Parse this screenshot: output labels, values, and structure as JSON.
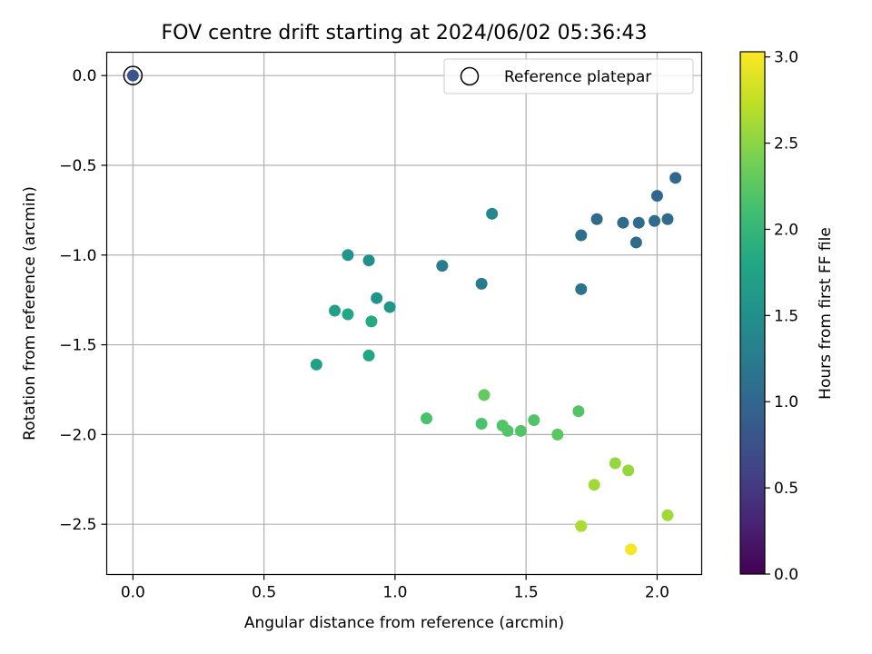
{
  "chart_data": {
    "type": "scatter",
    "title": "FOV centre drift starting at 2024/06/02 05:36:43",
    "xlabel": "Angular distance from reference (arcmin)",
    "ylabel": "Rotation from reference (arcmin)",
    "xlim": [
      -0.1,
      2.17
    ],
    "ylim": [
      -2.78,
      0.13
    ],
    "xticks": [
      0.0,
      0.5,
      1.0,
      1.5,
      2.0
    ],
    "xtick_labels": [
      "0.0",
      "0.5",
      "1.0",
      "1.5",
      "2.0"
    ],
    "yticks": [
      0.0,
      -0.5,
      -1.0,
      -1.5,
      -2.0,
      -2.5
    ],
    "ytick_labels": [
      "0.0",
      "−0.5",
      "−1.0",
      "−1.5",
      "−2.0",
      "−2.5"
    ],
    "grid": true,
    "legend": {
      "placement": "top-right",
      "entries": [
        "Reference platepar"
      ]
    },
    "colorbar": {
      "label": "Hours from first FF file",
      "colormap": "viridis",
      "range": [
        0.0,
        3.03
      ],
      "ticks": [
        0.0,
        0.5,
        1.0,
        1.5,
        2.0,
        2.5,
        3.0
      ],
      "tick_labels": [
        "0.0",
        "0.5",
        "1.0",
        "1.5",
        "2.0",
        "2.5",
        "3.0"
      ]
    },
    "reference": {
      "x": 0.0,
      "y": 0.0,
      "color_value": 0.8
    },
    "points": [
      {
        "x": 2.07,
        "y": -0.57,
        "c": 1.0
      },
      {
        "x": 2.0,
        "y": -0.67,
        "c": 1.0
      },
      {
        "x": 1.77,
        "y": -0.8,
        "c": 1.05
      },
      {
        "x": 1.87,
        "y": -0.82,
        "c": 1.05
      },
      {
        "x": 1.93,
        "y": -0.82,
        "c": 1.05
      },
      {
        "x": 1.99,
        "y": -0.81,
        "c": 1.05
      },
      {
        "x": 2.04,
        "y": -0.8,
        "c": 1.05
      },
      {
        "x": 1.71,
        "y": -0.89,
        "c": 1.1
      },
      {
        "x": 1.92,
        "y": -0.93,
        "c": 1.05
      },
      {
        "x": 1.71,
        "y": -1.19,
        "c": 1.15
      },
      {
        "x": 1.37,
        "y": -0.77,
        "c": 1.4
      },
      {
        "x": 1.18,
        "y": -1.06,
        "c": 1.25
      },
      {
        "x": 1.33,
        "y": -1.16,
        "c": 1.25
      },
      {
        "x": 0.82,
        "y": -1.0,
        "c": 1.55
      },
      {
        "x": 0.9,
        "y": -1.03,
        "c": 1.5
      },
      {
        "x": 0.93,
        "y": -1.24,
        "c": 1.55
      },
      {
        "x": 0.98,
        "y": -1.29,
        "c": 1.6
      },
      {
        "x": 0.77,
        "y": -1.31,
        "c": 1.7
      },
      {
        "x": 0.82,
        "y": -1.33,
        "c": 1.8
      },
      {
        "x": 0.91,
        "y": -1.37,
        "c": 1.85
      },
      {
        "x": 0.7,
        "y": -1.61,
        "c": 1.7
      },
      {
        "x": 0.9,
        "y": -1.56,
        "c": 1.8
      },
      {
        "x": 1.34,
        "y": -1.78,
        "c": 2.3
      },
      {
        "x": 1.12,
        "y": -1.91,
        "c": 2.15
      },
      {
        "x": 1.33,
        "y": -1.94,
        "c": 2.15
      },
      {
        "x": 1.41,
        "y": -1.95,
        "c": 2.2
      },
      {
        "x": 1.43,
        "y": -1.98,
        "c": 2.2
      },
      {
        "x": 1.48,
        "y": -1.98,
        "c": 2.2
      },
      {
        "x": 1.53,
        "y": -1.92,
        "c": 2.2
      },
      {
        "x": 1.62,
        "y": -2.0,
        "c": 2.25
      },
      {
        "x": 1.7,
        "y": -1.87,
        "c": 2.2
      },
      {
        "x": 1.84,
        "y": -2.16,
        "c": 2.55
      },
      {
        "x": 1.89,
        "y": -2.2,
        "c": 2.55
      },
      {
        "x": 1.76,
        "y": -2.28,
        "c": 2.6
      },
      {
        "x": 2.04,
        "y": -2.45,
        "c": 2.6
      },
      {
        "x": 1.71,
        "y": -2.51,
        "c": 2.65
      },
      {
        "x": 1.9,
        "y": -2.64,
        "c": 3.0
      }
    ]
  }
}
